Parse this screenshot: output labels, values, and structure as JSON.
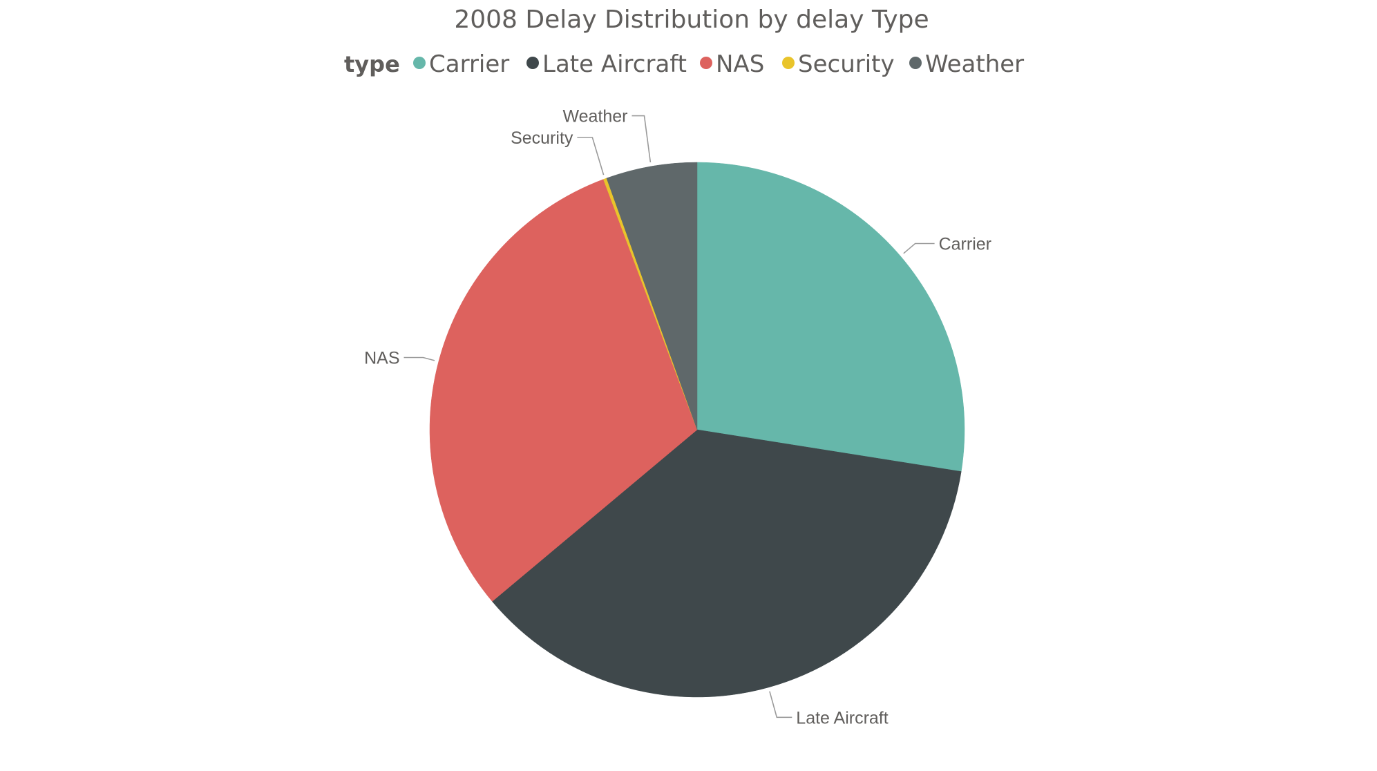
{
  "chart_data": {
    "type": "pie",
    "title": "2008 Delay Distribution by delay Type",
    "legend": {
      "title": "type",
      "position": "top-center",
      "entries": [
        "Carrier",
        "Late Aircraft",
        "NAS",
        "Security",
        "Weather"
      ]
    },
    "slices": [
      {
        "label": "Carrier",
        "value": 27.5,
        "color": "#66B7AA"
      },
      {
        "label": "Late Aircraft",
        "value": 36.4,
        "color": "#3F484B"
      },
      {
        "label": "NAS",
        "value": 30.4,
        "color": "#DD625E"
      },
      {
        "label": "Security",
        "value": 0.2,
        "color": "#E9C42B"
      },
      {
        "label": "Weather",
        "value": 5.5,
        "color": "#5F686A"
      }
    ],
    "start_angle_deg": 0,
    "direction": "clockwise",
    "data_labels": "category-outside-with-leaders"
  }
}
